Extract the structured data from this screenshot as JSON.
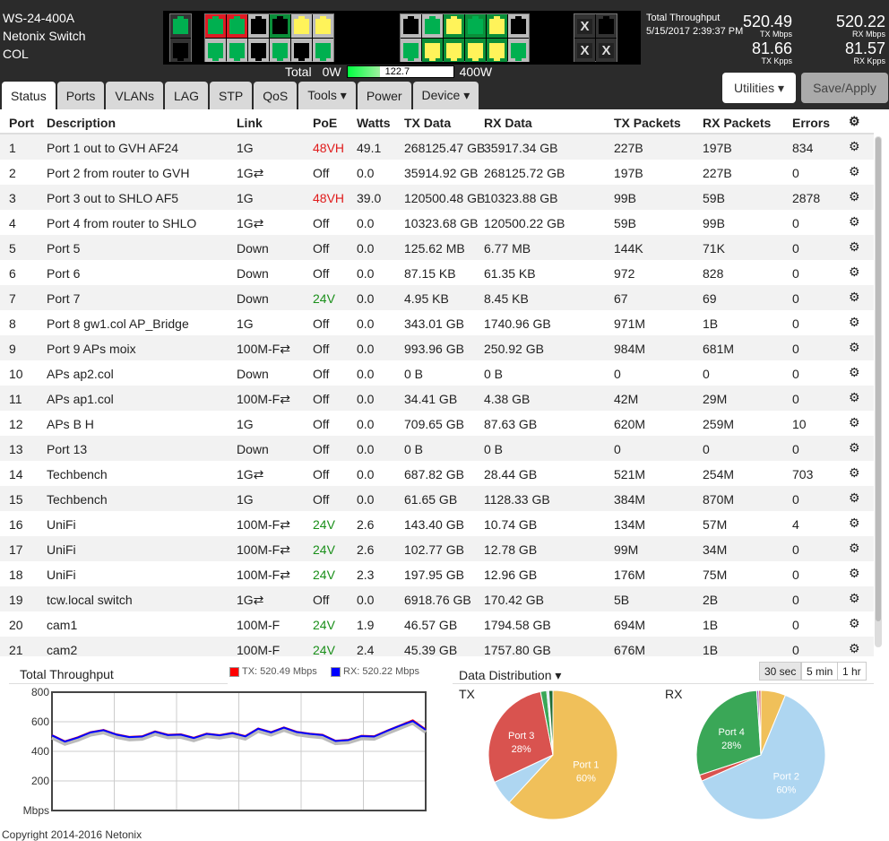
{
  "device": {
    "model": "WS-24-400A",
    "name": "Netonix Switch",
    "location": "COL"
  },
  "power": {
    "label": "Total",
    "min": "0W",
    "max": "400W",
    "value": "122.7",
    "fraction": 0.307
  },
  "throughput": {
    "title": "Total Throughput",
    "timestamp": "5/15/2017 2:39:37 PM",
    "tx_mbps": "520.49",
    "tx_mbps_label": "TX Mbps",
    "rx_mbps": "520.22",
    "rx_mbps_label": "RX Mbps",
    "tx_kpps": "81.66",
    "tx_kpps_label": "TX Kpps",
    "rx_kpps": "81.57",
    "rx_kpps_label": "RX Kpps"
  },
  "buttons": {
    "utilities": "Utilities ▾",
    "save": "Save/Apply"
  },
  "tabs": [
    {
      "label": "Status"
    },
    {
      "label": "Ports"
    },
    {
      "label": "VLANs"
    },
    {
      "label": "LAG"
    },
    {
      "label": "STP"
    },
    {
      "label": "QoS"
    },
    {
      "label": "Tools ▾"
    },
    {
      "label": "Power"
    },
    {
      "label": "Device ▾"
    }
  ],
  "columns": [
    "Port",
    "Description",
    "Link",
    "PoE",
    "Watts",
    "TX Data",
    "RX Data",
    "TX Packets",
    "RX Packets",
    "Errors"
  ],
  "rows": [
    [
      "1",
      "Port 1 out to GVH AF24",
      "1G",
      "48VH",
      "49.1",
      "268125.47 GB",
      "35917.34 GB",
      "227B",
      "197B",
      "834"
    ],
    [
      "2",
      "Port 2 from router to GVH",
      "1G⇄",
      "Off",
      "0.0",
      "35914.92 GB",
      "268125.72 GB",
      "197B",
      "227B",
      "0"
    ],
    [
      "3",
      "Port 3 out to SHLO AF5",
      "1G",
      "48VH",
      "39.0",
      "120500.48 GB",
      "10323.88 GB",
      "99B",
      "59B",
      "2878"
    ],
    [
      "4",
      "Port 4 from router to SHLO",
      "1G⇄",
      "Off",
      "0.0",
      "10323.68 GB",
      "120500.22 GB",
      "59B",
      "99B",
      "0"
    ],
    [
      "5",
      "Port 5",
      "Down",
      "Off",
      "0.0",
      "125.62 MB",
      "6.77 MB",
      "144K",
      "71K",
      "0"
    ],
    [
      "6",
      "Port 6",
      "Down",
      "Off",
      "0.0",
      "87.15 KB",
      "61.35 KB",
      "972",
      "828",
      "0"
    ],
    [
      "7",
      "Port 7",
      "Down",
      "24V",
      "0.0",
      "4.95 KB",
      "8.45 KB",
      "67",
      "69",
      "0"
    ],
    [
      "8",
      "Port 8 gw1.col AP_Bridge",
      "1G",
      "Off",
      "0.0",
      "343.01 GB",
      "1740.96 GB",
      "971M",
      "1B",
      "0"
    ],
    [
      "9",
      "Port 9 APs moix",
      "100M-F⇄",
      "Off",
      "0.0",
      "993.96 GB",
      "250.92 GB",
      "984M",
      "681M",
      "0"
    ],
    [
      "10",
      "APs ap2.col",
      "Down",
      "Off",
      "0.0",
      "0 B",
      "0 B",
      "0",
      "0",
      "0"
    ],
    [
      "11",
      "APs ap1.col",
      "100M-F⇄",
      "Off",
      "0.0",
      "34.41 GB",
      "4.38 GB",
      "42M",
      "29M",
      "0"
    ],
    [
      "12",
      "APs B H",
      "1G",
      "Off",
      "0.0",
      "709.65 GB",
      "87.63 GB",
      "620M",
      "259M",
      "10"
    ],
    [
      "13",
      "Port 13",
      "Down",
      "Off",
      "0.0",
      "0 B",
      "0 B",
      "0",
      "0",
      "0"
    ],
    [
      "14",
      "Techbench",
      "1G⇄",
      "Off",
      "0.0",
      "687.82 GB",
      "28.44 GB",
      "521M",
      "254M",
      "703"
    ],
    [
      "15",
      "Techbench",
      "1G",
      "Off",
      "0.0",
      "61.65 GB",
      "1128.33 GB",
      "384M",
      "870M",
      "0"
    ],
    [
      "16",
      "UniFi",
      "100M-F⇄",
      "24V",
      "2.6",
      "143.40 GB",
      "10.74 GB",
      "134M",
      "57M",
      "4"
    ],
    [
      "17",
      "UniFi",
      "100M-F⇄",
      "24V",
      "2.6",
      "102.77 GB",
      "12.78 GB",
      "99M",
      "34M",
      "0"
    ],
    [
      "18",
      "UniFi",
      "100M-F⇄",
      "24V",
      "2.3",
      "197.95 GB",
      "12.96 GB",
      "176M",
      "75M",
      "0"
    ],
    [
      "19",
      "tcw.local switch",
      "1G⇄",
      "Off",
      "0.0",
      "6918.76 GB",
      "170.42 GB",
      "5B",
      "2B",
      "0"
    ],
    [
      "20",
      "cam1",
      "100M-F",
      "24V",
      "1.9",
      "46.57 GB",
      "1794.58 GB",
      "694M",
      "1B",
      "0"
    ],
    [
      "21",
      "cam2",
      "100M-F",
      "24V",
      "2.4",
      "45.39 GB",
      "1757.80 GB",
      "676M",
      "1B",
      "0"
    ]
  ],
  "colors": {
    "poe_48": "#e01b1b",
    "poe_24": "#1a8f1a",
    "tx": "#ff0000",
    "rx": "#0000ff",
    "port_green": "#00b050",
    "port_yellow": "#fff35a",
    "port_red": "#e01b24"
  },
  "chart_data": [
    {
      "type": "line",
      "title": "Total Throughput",
      "ylabel": "Mbps",
      "ylim": [
        0,
        800
      ],
      "yticks": [
        200,
        400,
        600,
        800
      ],
      "grid": true,
      "series": [
        {
          "name": "TX: 520.49 Mbps",
          "color": "#ff0000",
          "values": [
            510,
            468,
            495,
            530,
            545,
            515,
            498,
            502,
            535,
            512,
            515,
            492,
            520,
            510,
            525,
            503,
            555,
            530,
            562,
            532,
            520,
            512,
            472,
            478,
            505,
            502,
            540,
            575,
            610,
            548
          ]
        },
        {
          "name": "RX: 520.22 Mbps",
          "color": "#0000ff",
          "values": [
            508,
            466,
            493,
            528,
            543,
            513,
            496,
            500,
            533,
            510,
            513,
            490,
            518,
            508,
            523,
            501,
            553,
            528,
            560,
            530,
            518,
            510,
            470,
            476,
            503,
            500,
            538,
            573,
            605,
            546
          ]
        }
      ]
    },
    {
      "type": "pie",
      "title": "Data Distribution ▾",
      "name": "TX",
      "slices": [
        {
          "label": "Port 1",
          "value": 60,
          "color": "#f0c05a"
        },
        {
          "label": "",
          "value": 6,
          "color": "#aed6f1"
        },
        {
          "label": "Port 3",
          "value": 28,
          "color": "#d9534f"
        },
        {
          "label": "",
          "value": 1.5,
          "color": "#3aa757"
        },
        {
          "label": "",
          "value": 0.5,
          "color": "#cde"
        },
        {
          "label": "",
          "value": 1,
          "color": "#1e6b34"
        }
      ]
    },
    {
      "type": "pie",
      "name": "RX",
      "slices": [
        {
          "label": "",
          "value": 6,
          "color": "#f0c05a"
        },
        {
          "label": "Port 2",
          "value": 60,
          "color": "#aed6f1"
        },
        {
          "label": "",
          "value": 1.5,
          "color": "#d9534f"
        },
        {
          "label": "Port 4",
          "value": 28,
          "color": "#3aa757"
        },
        {
          "label": "",
          "value": 0.5,
          "color": "#9b59b6"
        },
        {
          "label": "",
          "value": 0.5,
          "color": "#d9534f"
        }
      ]
    }
  ],
  "range": [
    "30 sec",
    "5 min",
    "1 hr"
  ],
  "footer": "Copyright 2014-2016 Netonix"
}
